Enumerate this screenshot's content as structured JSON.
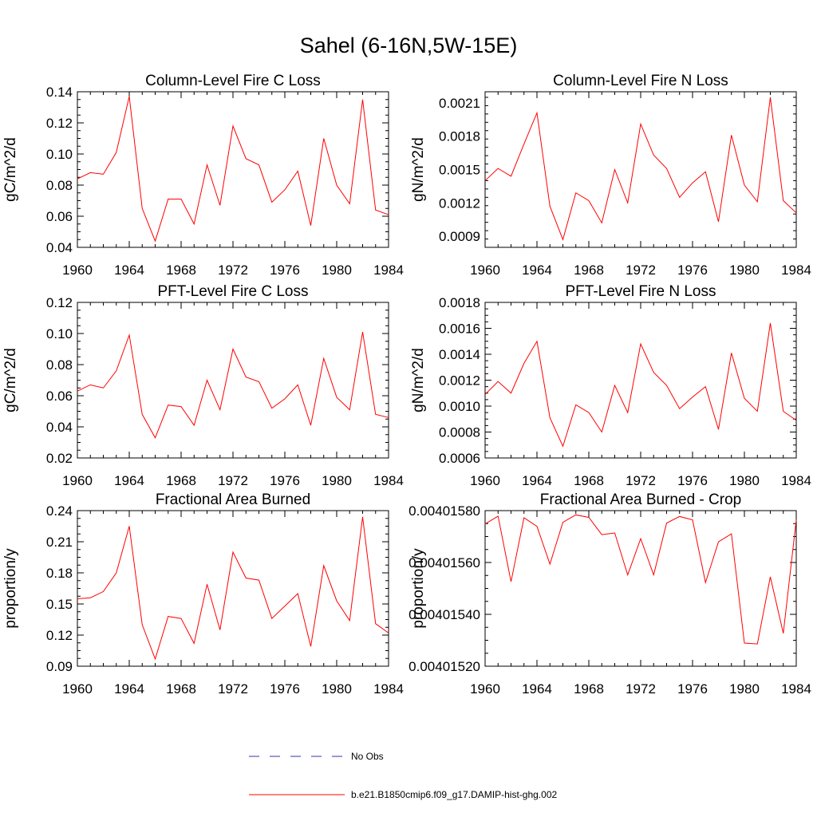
{
  "figure": {
    "title": "Sahel (6-16N,5W-15E)"
  },
  "legend": [
    {
      "label": "No Obs",
      "color": "#3333aa",
      "dashed": true
    },
    {
      "label": "b.e21.B1850cmip6.f09_g17.DAMIP-hist-ghg.002",
      "color": "#ff0000",
      "dashed": false
    }
  ],
  "chart_data": [
    {
      "type": "line",
      "title": "Column-Level Fire C Loss",
      "ylabel": "gC/m^2/d",
      "xlabel": "",
      "xlim": [
        1960,
        1984
      ],
      "ylim": [
        0.04,
        0.14
      ],
      "xticks": [
        "1960",
        "1964",
        "1968",
        "1972",
        "1976",
        "1980",
        "1984"
      ],
      "yticks": [
        "0.04",
        "0.06",
        "0.08",
        "0.10",
        "0.12",
        "0.14"
      ],
      "x": [
        1960,
        1961,
        1962,
        1963,
        1964,
        1965,
        1966,
        1967,
        1968,
        1969,
        1970,
        1971,
        1972,
        1973,
        1974,
        1975,
        1976,
        1977,
        1978,
        1979,
        1980,
        1981,
        1982,
        1983,
        1984
      ],
      "series": [
        {
          "color": "#ff0000",
          "values": [
            0.084,
            0.088,
            0.087,
            0.101,
            0.137,
            0.065,
            0.044,
            0.071,
            0.071,
            0.055,
            0.093,
            0.067,
            0.118,
            0.097,
            0.093,
            0.069,
            0.077,
            0.089,
            0.054,
            0.11,
            0.08,
            0.068,
            0.135,
            0.064,
            0.061
          ]
        }
      ]
    },
    {
      "type": "line",
      "title": "Column-Level Fire N Loss",
      "ylabel": "gN/m^2/d",
      "xlabel": "",
      "xlim": [
        1960,
        1984
      ],
      "ylim": [
        0.0008,
        0.0022
      ],
      "xticks": [
        "1960",
        "1964",
        "1968",
        "1972",
        "1976",
        "1980",
        "1984"
      ],
      "yticks": [
        "0.0009",
        "0.0012",
        "0.0015",
        "0.0018",
        "0.0021"
      ],
      "x": [
        1960,
        1961,
        1962,
        1963,
        1964,
        1965,
        1966,
        1967,
        1968,
        1969,
        1970,
        1971,
        1972,
        1973,
        1974,
        1975,
        1976,
        1977,
        1978,
        1979,
        1980,
        1981,
        1982,
        1983,
        1984
      ],
      "series": [
        {
          "color": "#ff0000",
          "values": [
            0.0014,
            0.00151,
            0.00144,
            0.00173,
            0.00201,
            0.00117,
            0.00087,
            0.00129,
            0.00122,
            0.00102,
            0.0015,
            0.0012,
            0.00191,
            0.00163,
            0.00151,
            0.00125,
            0.00138,
            0.00148,
            0.00103,
            0.00181,
            0.00136,
            0.00121,
            0.00215,
            0.00122,
            0.00111
          ]
        }
      ]
    },
    {
      "type": "line",
      "title": "PFT-Level Fire C Loss",
      "ylabel": "gC/m^2/d",
      "xlabel": "",
      "xlim": [
        1960,
        1984
      ],
      "ylim": [
        0.02,
        0.12
      ],
      "xticks": [
        "1960",
        "1964",
        "1968",
        "1972",
        "1976",
        "1980",
        "1984"
      ],
      "yticks": [
        "0.02",
        "0.04",
        "0.06",
        "0.08",
        "0.10",
        "0.12"
      ],
      "x": [
        1960,
        1961,
        1962,
        1963,
        1964,
        1965,
        1966,
        1967,
        1968,
        1969,
        1970,
        1971,
        1972,
        1973,
        1974,
        1975,
        1976,
        1977,
        1978,
        1979,
        1980,
        1981,
        1982,
        1983,
        1984
      ],
      "series": [
        {
          "color": "#ff0000",
          "values": [
            0.063,
            0.067,
            0.065,
            0.076,
            0.099,
            0.048,
            0.033,
            0.054,
            0.053,
            0.041,
            0.07,
            0.051,
            0.09,
            0.072,
            0.069,
            0.052,
            0.058,
            0.067,
            0.041,
            0.084,
            0.059,
            0.051,
            0.101,
            0.048,
            0.046
          ]
        }
      ]
    },
    {
      "type": "line",
      "title": "PFT-Level Fire N Loss",
      "ylabel": "gN/m^2/d",
      "xlabel": "",
      "xlim": [
        1960,
        1984
      ],
      "ylim": [
        0.0006,
        0.0018
      ],
      "xticks": [
        "1960",
        "1964",
        "1968",
        "1972",
        "1976",
        "1980",
        "1984"
      ],
      "yticks": [
        "0.0006",
        "0.0008",
        "0.0010",
        "0.0012",
        "0.0014",
        "0.0016",
        "0.0018"
      ],
      "x": [
        1960,
        1961,
        1962,
        1963,
        1964,
        1965,
        1966,
        1967,
        1968,
        1969,
        1970,
        1971,
        1972,
        1973,
        1974,
        1975,
        1976,
        1977,
        1978,
        1979,
        1980,
        1981,
        1982,
        1983,
        1984
      ],
      "series": [
        {
          "color": "#ff0000",
          "values": [
            0.00109,
            0.00119,
            0.0011,
            0.00133,
            0.0015,
            0.00091,
            0.00069,
            0.00101,
            0.00095,
            0.0008,
            0.00116,
            0.00095,
            0.00148,
            0.00126,
            0.00116,
            0.00098,
            0.00107,
            0.00115,
            0.00082,
            0.00141,
            0.00106,
            0.00096,
            0.00164,
            0.00096,
            0.00089
          ]
        }
      ]
    },
    {
      "type": "line",
      "title": "Fractional Area Burned",
      "ylabel": "proportion/y",
      "xlabel": "",
      "xlim": [
        1960,
        1984
      ],
      "ylim": [
        0.09,
        0.24
      ],
      "xticks": [
        "1960",
        "1964",
        "1968",
        "1972",
        "1976",
        "1980",
        "1984"
      ],
      "yticks": [
        "0.09",
        "0.12",
        "0.15",
        "0.18",
        "0.21",
        "0.24"
      ],
      "x": [
        1960,
        1961,
        1962,
        1963,
        1964,
        1965,
        1966,
        1967,
        1968,
        1969,
        1970,
        1971,
        1972,
        1973,
        1974,
        1975,
        1976,
        1977,
        1978,
        1979,
        1980,
        1981,
        1982,
        1983,
        1984
      ],
      "series": [
        {
          "color": "#ff0000",
          "values": [
            0.155,
            0.156,
            0.162,
            0.18,
            0.225,
            0.13,
            0.097,
            0.138,
            0.136,
            0.112,
            0.169,
            0.125,
            0.2,
            0.175,
            0.173,
            0.136,
            0.148,
            0.16,
            0.109,
            0.187,
            0.153,
            0.134,
            0.234,
            0.131,
            0.122
          ]
        }
      ]
    },
    {
      "type": "line",
      "title": "Fractional Area Burned - Crop",
      "ylabel": "proportion/y",
      "xlabel": "",
      "xlim": [
        1960,
        1984
      ],
      "ylim": [
        0.0040152,
        0.0040158
      ],
      "xticks": [
        "1960",
        "1964",
        "1968",
        "1972",
        "1976",
        "1980",
        "1984"
      ],
      "yticks": [
        "0.00401520",
        "0.00401540",
        "0.00401560",
        "0.00401580"
      ],
      "x": [
        1960,
        1961,
        1962,
        1963,
        1964,
        1965,
        1966,
        1967,
        1968,
        1969,
        1970,
        1971,
        1972,
        1973,
        1974,
        1975,
        1976,
        1977,
        1978,
        1979,
        1980,
        1981,
        1982,
        1983,
        1984
      ],
      "series": [
        {
          "color": "#ff0000",
          "values": [
            0.0040157487,
            0.0040157788,
            0.0040155259,
            0.0040157723,
            0.0040157392,
            0.0040155939,
            0.004015755,
            0.0040157836,
            0.004015774,
            0.0040157075,
            0.0040157138,
            0.0040155522,
            0.004015692,
            0.0040155522,
            0.0040157519,
            0.0040157774,
            0.0040157645,
            0.0040155227,
            0.0040156796,
            0.0040157106,
            0.0040152891,
            0.0040152858,
            0.0040155446,
            0.0040153269,
            0.0040157645
          ]
        }
      ]
    }
  ]
}
